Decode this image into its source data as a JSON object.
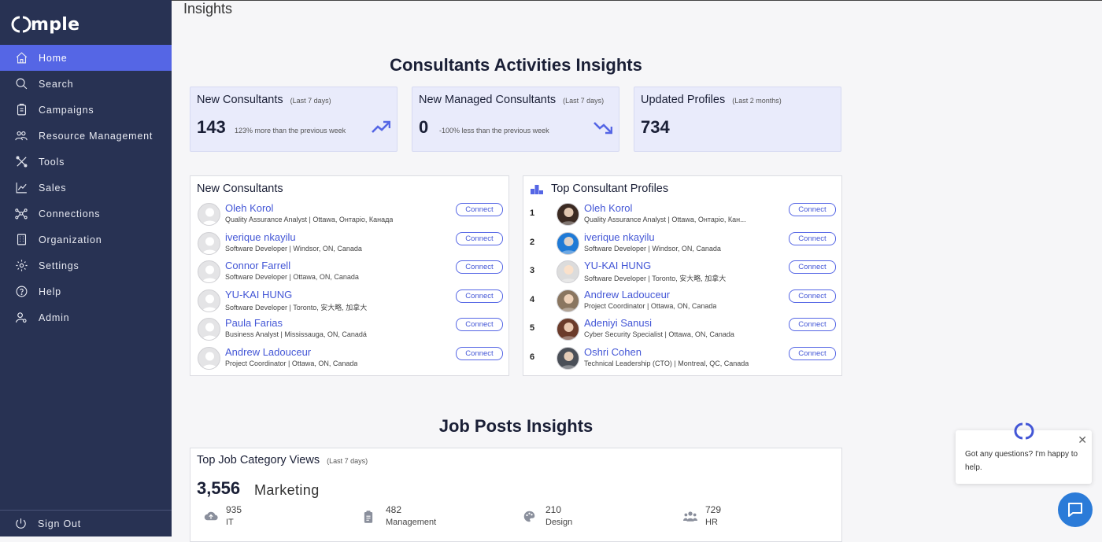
{
  "app": {
    "brand": "mple"
  },
  "nav": [
    {
      "label": "Home",
      "icon": "home-icon",
      "active": true
    },
    {
      "label": "Search",
      "icon": "search-icon"
    },
    {
      "label": "Campaigns",
      "icon": "campaigns-icon"
    },
    {
      "label": "Resource Management",
      "icon": "people-icon"
    },
    {
      "label": "Tools",
      "icon": "tools-icon"
    },
    {
      "label": "Sales",
      "icon": "chart-icon"
    },
    {
      "label": "Connections",
      "icon": "network-icon"
    },
    {
      "label": "Organization",
      "icon": "building-icon"
    },
    {
      "label": "Settings",
      "icon": "gear-icon"
    },
    {
      "label": "Help",
      "icon": "help-icon"
    },
    {
      "label": "Admin",
      "icon": "admin-icon"
    }
  ],
  "signout": {
    "label": "Sign Out"
  },
  "page": {
    "title": "Insights"
  },
  "consultants_section": {
    "title": "Consultants Activities Insights"
  },
  "stats": [
    {
      "title": "New Consultants",
      "period": "(Last 7 days)",
      "value": "143",
      "sub": "123% more than the previous week",
      "trend": "up"
    },
    {
      "title": "New Managed Consultants",
      "period": "(Last 7 days)",
      "value": "0",
      "sub": "-100% less than the previous week",
      "trend": "down"
    },
    {
      "title": "Updated Profiles",
      "period": "(Last 2 months)",
      "value": "734",
      "sub": "",
      "trend": ""
    }
  ],
  "new_consultants": {
    "title": "New Consultants",
    "button_label": "Connect",
    "items": [
      {
        "name": "Oleh Korol",
        "sub": "Quality Assurance Analyst | Ottawa, Онтаріо, Канада"
      },
      {
        "name": "iverique nkayilu",
        "sub": "Software Developer | Windsor, ON, Canada"
      },
      {
        "name": "Connor Farrell",
        "sub": "Software Developer | Ottawa, ON, Canada"
      },
      {
        "name": "YU-KAI HUNG",
        "sub": "Software Developer | Toronto, 安大略, 加拿大"
      },
      {
        "name": "Paula Farias",
        "sub": "Business Analyst | Mississauga, ON, Canadá"
      },
      {
        "name": "Andrew Ladouceur",
        "sub": "Project Coordinator | Ottawa, ON, Canada"
      }
    ]
  },
  "top_profiles": {
    "title": "Top Consultant Profiles",
    "button_label": "Connect",
    "items": [
      {
        "rank": "1",
        "name": "Oleh Korol",
        "sub": "Quality Assurance Analyst | Ottawa, Онтаріо, Кан...",
        "avatar_color": "#3b2a22"
      },
      {
        "rank": "2",
        "name": "iverique nkayilu",
        "sub": "Software Developer | Windsor, ON, Canada",
        "avatar_color": "#1f7ad6"
      },
      {
        "rank": "3",
        "name": "YU-KAI HUNG",
        "sub": "Software Developer | Toronto, 安大略, 加拿大",
        "avatar_color": "#dcdcdc"
      },
      {
        "rank": "4",
        "name": "Andrew Ladouceur",
        "sub": "Project Coordinator | Ottawa, ON, Canada",
        "avatar_color": "#8a7660"
      },
      {
        "rank": "5",
        "name": "Adeniyi Sanusi",
        "sub": "Cyber Security Specialist | Ottawa, ON, Canada",
        "avatar_color": "#6b3b2a"
      },
      {
        "rank": "6",
        "name": "Oshri Cohen",
        "sub": "Technical Leadership (CTO) | Montreal, QC, Canada",
        "avatar_color": "#4a4f57"
      }
    ]
  },
  "jobs_section": {
    "title": "Job Posts Insights"
  },
  "job_views": {
    "title": "Top Job Category Views",
    "period": "(Last 7 days)",
    "top_value": "3,556",
    "top_category": "Marketing",
    "categories": [
      {
        "count": "935",
        "label": "IT",
        "icon": "cloud-upload-icon"
      },
      {
        "count": "482",
        "label": "Management",
        "icon": "clipboard-icon"
      },
      {
        "count": "210",
        "label": "Design",
        "icon": "palette-icon"
      },
      {
        "count": "729",
        "label": "HR",
        "icon": "group-icon"
      }
    ]
  },
  "chat": {
    "message": "Got any questions? I'm happy to help.",
    "close": "✕"
  }
}
